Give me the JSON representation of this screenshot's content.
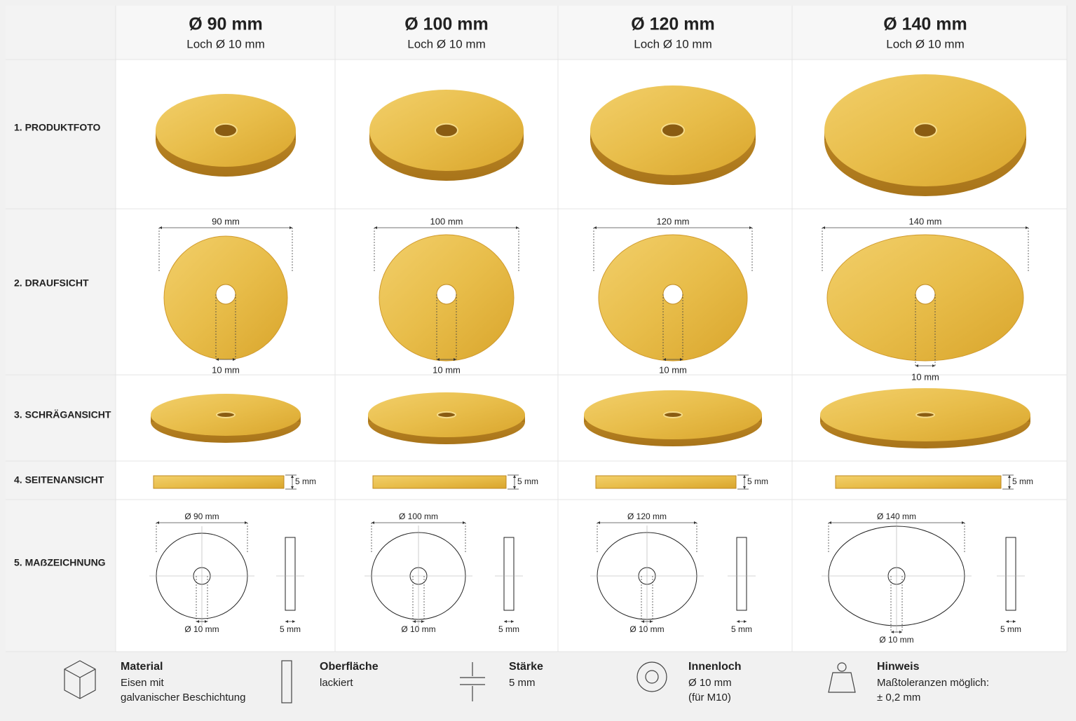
{
  "header": {
    "columns": [
      {
        "title": "Ø 90 mm",
        "subtitle": "Loch Ø 10 mm"
      },
      {
        "title": "Ø 100 mm",
        "subtitle": "Loch Ø 10 mm"
      },
      {
        "title": "Ø 120 mm",
        "subtitle": "Loch Ø 10 mm"
      },
      {
        "title": "Ø 140 mm",
        "subtitle": "Loch Ø 10 mm"
      }
    ]
  },
  "rows": [
    "1. PRODUKTFOTO",
    "2. DRAUFSICHT",
    "3. SCHRÄGANSICHT",
    "4. SEITENANSICHT",
    "5. MAẞZEICHNUNG"
  ],
  "columns": [
    {
      "top_diameter": "90 mm",
      "top_hole": "10 mm",
      "side_thickness": "5 mm",
      "drawing_diameter": "Ø 90 mm",
      "drawing_hole": "Ø 10 mm",
      "drawing_thickness": "5 mm"
    },
    {
      "top_diameter": "100 mm",
      "top_hole": "10 mm",
      "side_thickness": "5 mm",
      "drawing_diameter": "Ø 100 mm",
      "drawing_hole": "Ø 10 mm",
      "drawing_thickness": "5 mm"
    },
    {
      "top_diameter": "120 mm",
      "top_hole": "10 mm",
      "side_thickness": "5 mm",
      "drawing_diameter": "Ø 120 mm",
      "drawing_hole": "Ø 10 mm",
      "drawing_thickness": "5 mm"
    },
    {
      "top_diameter": "140 mm",
      "top_hole": "10 mm",
      "side_thickness": "5 mm",
      "drawing_diameter": "Ø 140 mm",
      "drawing_hole": "Ø 10 mm",
      "drawing_thickness": "5 mm"
    }
  ],
  "footer": [
    {
      "title": "Material",
      "lines": [
        "Eisen mit",
        "galvanischer Beschichtung"
      ]
    },
    {
      "title": "Oberfläche",
      "lines": [
        "lackiert"
      ]
    },
    {
      "title": "Stärke",
      "lines": [
        "5 mm"
      ]
    },
    {
      "title": "Innenloch",
      "lines": [
        "Ø 10 mm",
        "(für M10)"
      ]
    },
    {
      "title": "Hinweis",
      "lines": [
        "Maßtoleranzen möglich:",
        "± 0,2 mm"
      ]
    }
  ]
}
